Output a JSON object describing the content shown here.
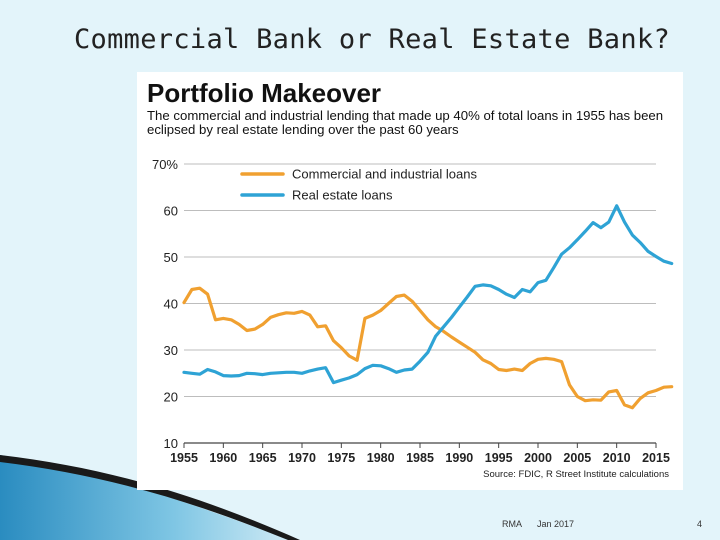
{
  "slide": {
    "title": "Commercial Bank or Real Estate Bank?",
    "footer_left": "RMA",
    "footer_center": "Jan 2017",
    "page_number": "4"
  },
  "chart_data": {
    "type": "line",
    "title": "Portfolio Makeover",
    "subtitle": "The commercial and industrial lending that made up 40% of total loans in 1955 has been eclipsed by real estate lending over the past 60 years",
    "source": "Source: FDIC, R Street Institute calculations",
    "xlabel": "",
    "ylabel": "",
    "xlim": [
      1955,
      2015
    ],
    "ylim": [
      10,
      70
    ],
    "x_ticks": [
      1955,
      1960,
      1965,
      1970,
      1975,
      1980,
      1985,
      1990,
      1995,
      2000,
      2005,
      2010,
      2015
    ],
    "y_ticks": [
      10,
      20,
      30,
      40,
      50,
      60,
      70
    ],
    "y_tick_labels": [
      "10",
      "20",
      "30",
      "40",
      "50",
      "60",
      "70%"
    ],
    "grid": true,
    "legend_position": "top-left",
    "series": [
      {
        "name": "Commercial and industrial loans",
        "color": "#f0a030",
        "points": [
          [
            1955,
            40.2
          ],
          [
            1956,
            43
          ],
          [
            1957,
            43.3
          ],
          [
            1958,
            42
          ],
          [
            1959,
            36.5
          ],
          [
            1960,
            36.8
          ],
          [
            1961,
            36.5
          ],
          [
            1962,
            35.5
          ],
          [
            1963,
            34.2
          ],
          [
            1964,
            34.5
          ],
          [
            1965,
            35.5
          ],
          [
            1966,
            37
          ],
          [
            1967,
            37.6
          ],
          [
            1968,
            38
          ],
          [
            1969,
            37.9
          ],
          [
            1970,
            38.3
          ],
          [
            1971,
            37.5
          ],
          [
            1972,
            35
          ],
          [
            1973,
            35.2
          ],
          [
            1974,
            32
          ],
          [
            1975,
            30.5
          ],
          [
            1976,
            28.7
          ],
          [
            1977,
            27.8
          ],
          [
            1978,
            36.8
          ],
          [
            1979,
            37.5
          ],
          [
            1980,
            38.5
          ],
          [
            1981,
            40
          ],
          [
            1982,
            41.5
          ],
          [
            1983,
            41.8
          ],
          [
            1984,
            40.5
          ],
          [
            1985,
            38.5
          ],
          [
            1986,
            36.5
          ],
          [
            1987,
            35
          ],
          [
            1988,
            34
          ],
          [
            1989,
            32.8
          ],
          [
            1990,
            31.7
          ],
          [
            1991,
            30.6
          ],
          [
            1992,
            29.5
          ],
          [
            1993,
            27.9
          ],
          [
            1994,
            27.1
          ],
          [
            1995,
            25.8
          ],
          [
            1996,
            25.6
          ],
          [
            1997,
            25.9
          ],
          [
            1998,
            25.6
          ],
          [
            1999,
            27.1
          ],
          [
            2000,
            28
          ],
          [
            2001,
            28.2
          ],
          [
            2002,
            28
          ],
          [
            2003,
            27.5
          ],
          [
            2004,
            22.5
          ],
          [
            2005,
            20
          ],
          [
            2006,
            19.1
          ],
          [
            2007,
            19.3
          ],
          [
            2008,
            19.2
          ],
          [
            2009,
            21
          ],
          [
            2010,
            21.3
          ],
          [
            2011,
            18.2
          ],
          [
            2012,
            17.6
          ],
          [
            2013,
            19.6
          ],
          [
            2014,
            20.8
          ],
          [
            2015,
            21.3
          ],
          [
            2016,
            22
          ],
          [
            2017,
            22.1
          ]
        ]
      },
      {
        "name": "Real estate loans",
        "color": "#2ea3d5",
        "points": [
          [
            1955,
            25.2
          ],
          [
            1956,
            25
          ],
          [
            1957,
            24.8
          ],
          [
            1958,
            25.8
          ],
          [
            1959,
            25.3
          ],
          [
            1960,
            24.5
          ],
          [
            1961,
            24.4
          ],
          [
            1962,
            24.5
          ],
          [
            1963,
            25
          ],
          [
            1964,
            24.9
          ],
          [
            1965,
            24.7
          ],
          [
            1966,
            25
          ],
          [
            1967,
            25.1
          ],
          [
            1968,
            25.2
          ],
          [
            1969,
            25.2
          ],
          [
            1970,
            25
          ],
          [
            1971,
            25.5
          ],
          [
            1972,
            25.9
          ],
          [
            1973,
            26.2
          ],
          [
            1974,
            23
          ],
          [
            1975,
            23.5
          ],
          [
            1976,
            24
          ],
          [
            1977,
            24.7
          ],
          [
            1978,
            26
          ],
          [
            1979,
            26.7
          ],
          [
            1980,
            26.6
          ],
          [
            1981,
            26
          ],
          [
            1982,
            25.2
          ],
          [
            1983,
            25.7
          ],
          [
            1984,
            25.9
          ],
          [
            1985,
            27.6
          ],
          [
            1986,
            29.5
          ],
          [
            1987,
            33
          ],
          [
            1988,
            35
          ],
          [
            1989,
            37
          ],
          [
            1990,
            39.2
          ],
          [
            1991,
            41.4
          ],
          [
            1992,
            43.7
          ],
          [
            1993,
            44
          ],
          [
            1994,
            43.8
          ],
          [
            1995,
            43
          ],
          [
            1996,
            42
          ],
          [
            1997,
            41.3
          ],
          [
            1998,
            43
          ],
          [
            1999,
            42.5
          ],
          [
            2000,
            44.5
          ],
          [
            2001,
            45
          ],
          [
            2002,
            47.7
          ],
          [
            2003,
            50.6
          ],
          [
            2004,
            52
          ],
          [
            2005,
            53.7
          ],
          [
            2006,
            55.5
          ],
          [
            2007,
            57.4
          ],
          [
            2008,
            56.3
          ],
          [
            2009,
            57.5
          ],
          [
            2010,
            61
          ],
          [
            2011,
            57.5
          ],
          [
            2012,
            54.7
          ],
          [
            2013,
            53.1
          ],
          [
            2014,
            51.2
          ],
          [
            2015,
            50.1
          ],
          [
            2016,
            49.1
          ],
          [
            2017,
            48.6
          ]
        ]
      }
    ]
  }
}
